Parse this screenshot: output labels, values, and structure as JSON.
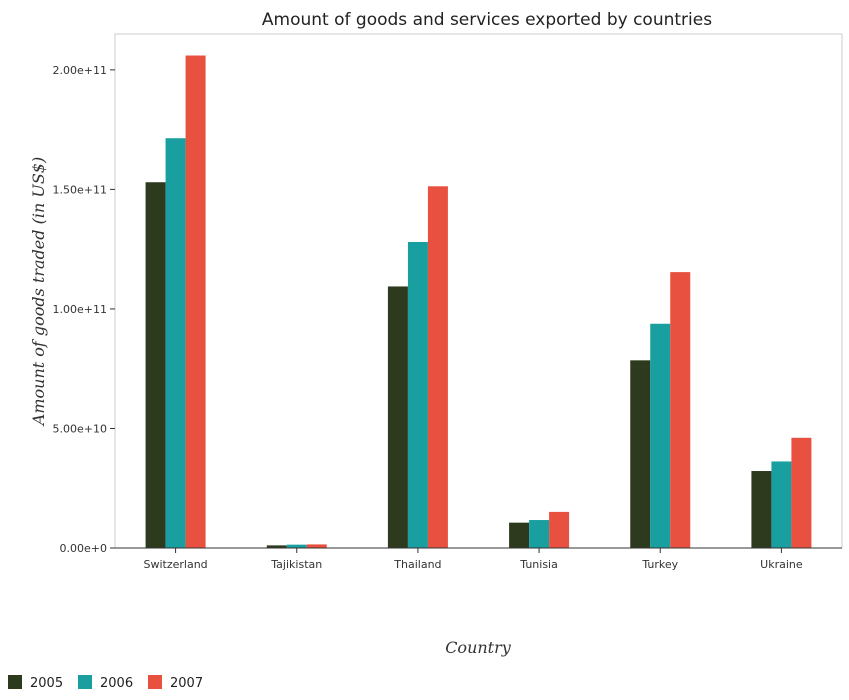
{
  "chart_data": {
    "type": "bar",
    "title": "Amount of goods and services exported by countries",
    "xlabel": "Country",
    "ylabel": "Amount of goods traded (in US$)",
    "categories": [
      "Switzerland",
      "Tajikistan",
      "Thailand",
      "Tunisia",
      "Turkey",
      "Ukraine"
    ],
    "series": [
      {
        "name": "2005",
        "color": "#2d3a1e",
        "values": [
          153000000000.0,
          1100000000.0,
          109400000000.0,
          10600000000.0,
          78500000000.0,
          32200000000.0
        ]
      },
      {
        "name": "2006",
        "color": "#1a9fa0",
        "values": [
          171400000000.0,
          1400000000.0,
          128000000000.0,
          11700000000.0,
          93800000000.0,
          36200000000.0
        ]
      },
      {
        "name": "2007",
        "color": "#e8513f",
        "values": [
          206000000000.0,
          1500000000.0,
          151300000000.0,
          15100000000.0,
          115400000000.0,
          46100000000.0
        ]
      }
    ],
    "ylim": [
      0,
      215000000000.0
    ],
    "yticks": [
      0,
      50000000000.0,
      100000000000.0,
      150000000000.0,
      200000000000.0
    ],
    "ytick_labels": [
      "0.00e+0",
      "5.00e+10",
      "1.00e+11",
      "1.50e+11",
      "2.00e+11"
    ],
    "grid": false,
    "legend_position": "bottom-left"
  }
}
